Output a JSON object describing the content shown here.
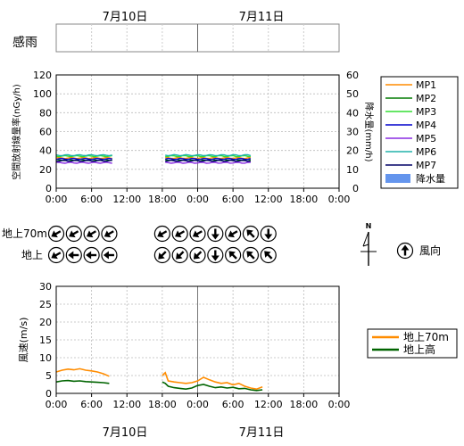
{
  "dates": {
    "day1": "7月10日",
    "day2": "7月11日"
  },
  "rain_sense_label": "感雨",
  "time_ticks": [
    "0:00",
    "6:00",
    "12:00",
    "18:00",
    "0:00",
    "6:00",
    "12:00",
    "18:00",
    "0:00"
  ],
  "x_range_hours": [
    0,
    48
  ],
  "charts": {
    "radiation": {
      "ylabel_left": "空間放射線量率(nGy/h)",
      "ylabel_right": "降水量(mm/h)",
      "ylim_left": [
        0,
        120
      ],
      "ylim_right": [
        0,
        60
      ],
      "yticks_left": [
        "0",
        "20",
        "40",
        "60",
        "80",
        "100",
        "120"
      ],
      "yticks_right": [
        "0",
        "10",
        "20",
        "30",
        "40",
        "50",
        "60"
      ]
    },
    "wind": {
      "ylabel": "風速(m/s)",
      "ylim": [
        0,
        30
      ],
      "yticks": [
        "0",
        "5",
        "10",
        "15",
        "20",
        "25",
        "30"
      ]
    }
  },
  "legend_radiation": [
    {
      "name": "MP1",
      "color": "#ff8c00"
    },
    {
      "name": "MP2",
      "color": "#007a00"
    },
    {
      "name": "MP3",
      "color": "#33dd33"
    },
    {
      "name": "MP4",
      "color": "#0000cc"
    },
    {
      "name": "MP5",
      "color": "#8a2be2"
    },
    {
      "name": "MP6",
      "color": "#20b2aa"
    },
    {
      "name": "MP7",
      "color": "#000066"
    },
    {
      "name": "降水量",
      "color": "#6495ed"
    }
  ],
  "legend_wind": [
    {
      "name": "地上70m",
      "color": "#ff8c00"
    },
    {
      "name": "地上高",
      "color": "#006400"
    }
  ],
  "wind_rows": {
    "upper_label": "地上70m",
    "lower_label": "地上"
  },
  "compass": {
    "north": "N",
    "legend_label": "風向"
  },
  "wind_directions": {
    "upper": [
      {
        "hour": 0,
        "rot": 240
      },
      {
        "hour": 3,
        "rot": 240
      },
      {
        "hour": 6,
        "rot": 240
      },
      {
        "hour": 9,
        "rot": 240
      },
      {
        "hour": 18,
        "rot": 240
      },
      {
        "hour": 21,
        "rot": 240
      },
      {
        "hour": 24,
        "rot": 240
      },
      {
        "hour": 27,
        "rot": 180
      },
      {
        "hour": 30,
        "rot": 240
      },
      {
        "hour": 33,
        "rot": 315
      },
      {
        "hour": 36,
        "rot": 180
      }
    ],
    "lower": [
      {
        "hour": 0,
        "rot": 240
      },
      {
        "hour": 3,
        "rot": 270
      },
      {
        "hour": 6,
        "rot": 270
      },
      {
        "hour": 9,
        "rot": 270
      },
      {
        "hour": 18,
        "rot": 225
      },
      {
        "hour": 21,
        "rot": 225
      },
      {
        "hour": 24,
        "rot": 225
      },
      {
        "hour": 27,
        "rot": 180
      },
      {
        "hour": 30,
        "rot": 315
      },
      {
        "hour": 33,
        "rot": 315
      },
      {
        "hour": 36,
        "rot": 315
      }
    ]
  },
  "chart_data": [
    {
      "type": "line",
      "title": "",
      "xlabel": "",
      "ylabel": "空間放射線量率(nGy/h)",
      "ylim": [
        0,
        120
      ],
      "segments_hours": [
        [
          0,
          9.5
        ],
        [
          18.5,
          33
        ]
      ],
      "series": [
        {
          "name": "MP1",
          "value": 32
        },
        {
          "name": "MP2",
          "value": 30
        },
        {
          "name": "MP3",
          "value": 34
        },
        {
          "name": "MP4",
          "value": 31
        },
        {
          "name": "MP5",
          "value": 27
        },
        {
          "name": "MP6",
          "value": 35
        },
        {
          "name": "MP7",
          "value": 29
        }
      ],
      "secondary_y": {
        "label": "降水量(mm/h)",
        "ylim": [
          0,
          60
        ],
        "series": [
          {
            "name": "降水量",
            "values": []
          }
        ]
      }
    },
    {
      "type": "line",
      "title": "",
      "xlabel": "",
      "ylabel": "風速(m/s)",
      "ylim": [
        0,
        30
      ],
      "series": [
        {
          "name": "地上70m",
          "segments": [
            [
              [
                0,
                6.0
              ],
              [
                1,
                6.5
              ],
              [
                2,
                6.8
              ],
              [
                3,
                6.6
              ],
              [
                4,
                6.9
              ],
              [
                5,
                6.5
              ],
              [
                6,
                6.3
              ],
              [
                7,
                6.0
              ],
              [
                8,
                5.5
              ],
              [
                9,
                4.8
              ]
            ],
            [
              [
                18,
                5.0
              ],
              [
                18.5,
                5.8
              ],
              [
                19,
                3.5
              ],
              [
                20,
                3.2
              ],
              [
                21,
                3.0
              ],
              [
                22,
                2.8
              ],
              [
                23,
                3.0
              ],
              [
                24,
                3.5
              ],
              [
                25,
                4.5
              ],
              [
                26,
                3.8
              ],
              [
                27,
                3.2
              ],
              [
                28,
                2.8
              ],
              [
                29,
                3.0
              ],
              [
                30,
                2.4
              ],
              [
                31,
                2.8
              ],
              [
                32,
                2.0
              ],
              [
                33,
                1.5
              ],
              [
                34,
                1.2
              ],
              [
                35,
                1.8
              ]
            ]
          ]
        },
        {
          "name": "地上高",
          "segments": [
            [
              [
                0,
                3.2
              ],
              [
                1,
                3.5
              ],
              [
                2,
                3.6
              ],
              [
                3,
                3.4
              ],
              [
                4,
                3.5
              ],
              [
                5,
                3.3
              ],
              [
                6,
                3.2
              ],
              [
                7,
                3.1
              ],
              [
                8,
                3.0
              ],
              [
                9,
                2.8
              ]
            ],
            [
              [
                18,
                3.2
              ],
              [
                18.5,
                2.8
              ],
              [
                19,
                2.0
              ],
              [
                20,
                1.6
              ],
              [
                21,
                1.4
              ],
              [
                22,
                1.2
              ],
              [
                23,
                1.5
              ],
              [
                24,
                2.2
              ],
              [
                25,
                2.5
              ],
              [
                26,
                2.0
              ],
              [
                27,
                1.6
              ],
              [
                28,
                1.8
              ],
              [
                29,
                1.5
              ],
              [
                30,
                1.7
              ],
              [
                31,
                1.3
              ],
              [
                32,
                1.4
              ],
              [
                33,
                1.0
              ],
              [
                34,
                0.8
              ],
              [
                35,
                1.0
              ]
            ]
          ]
        }
      ]
    }
  ]
}
